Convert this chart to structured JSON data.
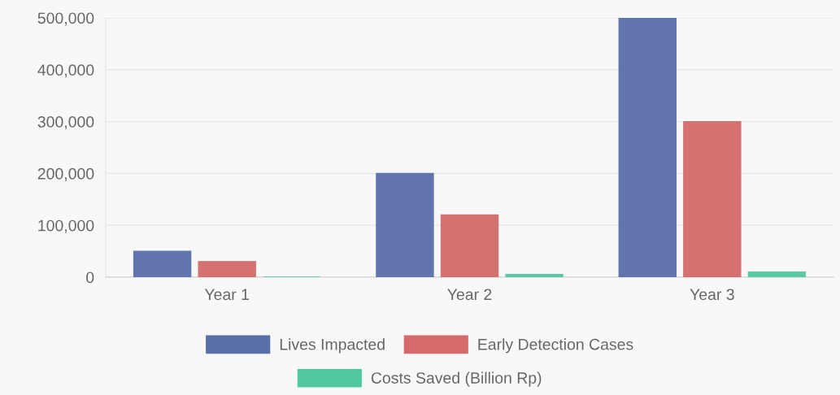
{
  "chart_data": {
    "type": "bar",
    "categories": [
      "Year 1",
      "Year 2",
      "Year 3"
    ],
    "series": [
      {
        "name": "Lives Impacted",
        "color": "#5a6fa8",
        "values": [
          50000,
          200000,
          500000
        ]
      },
      {
        "name": "Early Detection Cases",
        "color": "#d46a6a",
        "values": [
          30000,
          120000,
          300000
        ]
      },
      {
        "name": "Costs Saved (Billion Rp)",
        "color": "#50c9a0",
        "values": [
          0,
          5000,
          10000
        ]
      }
    ],
    "ylim": [
      0,
      500000
    ],
    "yticks": [
      {
        "value": 0,
        "label": "0"
      },
      {
        "value": 100000,
        "label": "100,000"
      },
      {
        "value": 200000,
        "label": "200,000"
      },
      {
        "value": 300000,
        "label": "300,000"
      },
      {
        "value": 400000,
        "label": "400,000"
      },
      {
        "value": 500000,
        "label": "500,000"
      }
    ],
    "grid": "y",
    "legend": "bottom"
  }
}
